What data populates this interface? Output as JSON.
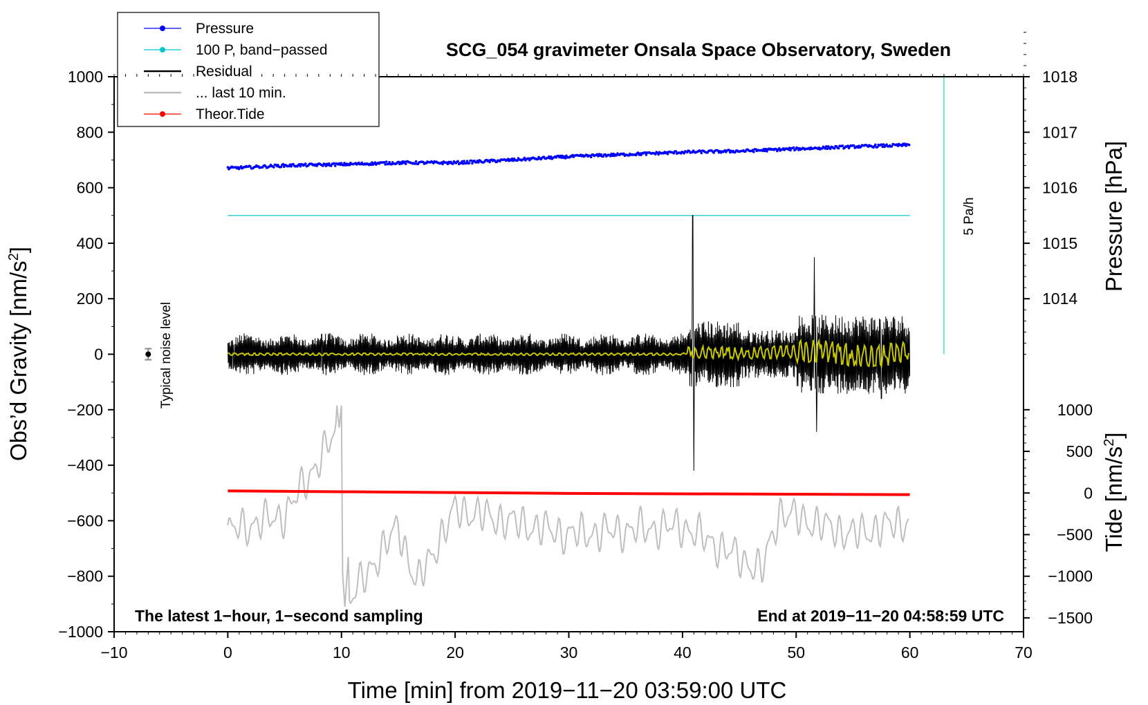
{
  "chart_data": {
    "type": "line",
    "title": "SCG_054 gravimeter Onsala Space Observatory, Sweden",
    "xlabel": "Time [min] from 2019−11−20 03:59:00 UTC",
    "ylabel_left": "Obs’d Gravity [nm/s",
    "ylabel_right_top": "Pressure [hPa]",
    "ylabel_right_bottom": "Tide [nm/s",
    "ylabel_sup": "2",
    "ylabel_close": "]",
    "xlim": [
      -10,
      70
    ],
    "ylim": [
      -1000,
      1000
    ],
    "x_ticks": [
      -10,
      0,
      10,
      20,
      30,
      40,
      50,
      60,
      70
    ],
    "x_tick_labels": [
      "−10",
      "0",
      "10",
      "20",
      "30",
      "40",
      "50",
      "60",
      "70"
    ],
    "y_ticks": [
      -1000,
      -800,
      -600,
      -400,
      -200,
      0,
      200,
      400,
      600,
      800,
      1000
    ],
    "y_tick_labels": [
      "−1000",
      "−800",
      "−600",
      "−400",
      "−200",
      "0",
      "200",
      "400",
      "600",
      "800",
      "1000"
    ],
    "pressure_axis": {
      "ticks": [
        1014,
        1015,
        1016,
        1017,
        1018
      ],
      "tick_labels": [
        "1014",
        "1015",
        "1016",
        "1017",
        "1018"
      ],
      "unit_gravity_per_hPa": 200,
      "hPa_at_gravity_zero": 1013
    },
    "tide_axis": {
      "ticks": [
        -1500,
        -1000,
        -500,
        0,
        500,
        1000
      ],
      "tick_labels": [
        "−1500",
        "−1000",
        "−500",
        "0",
        "500",
        "1000"
      ],
      "gravity_per_tide": 0.3,
      "gravity_at_tide_zero": -500
    },
    "legend": {
      "position": "top-left",
      "entries": [
        {
          "label": "Pressure",
          "color": "#0000ff",
          "marker": true
        },
        {
          "label": "100 P, band−passed",
          "color": "#00c8c8",
          "marker": true
        },
        {
          "label": "Residual",
          "color": "#000000",
          "marker": false
        },
        {
          "label": "... last 10 min.",
          "color": "#bebebe",
          "marker": false
        },
        {
          "label": "Theor.Tide",
          "color": "#ff0000",
          "marker": true
        }
      ]
    },
    "series": [
      {
        "name": "Pressure",
        "color": "#0000ff",
        "unit": "hPa",
        "x": [
          0,
          5,
          10,
          15,
          20,
          25,
          30,
          35,
          40,
          45,
          50,
          55,
          60
        ],
        "y": [
          1016.35,
          1016.4,
          1016.42,
          1016.45,
          1016.45,
          1016.5,
          1016.56,
          1016.6,
          1016.64,
          1016.66,
          1016.7,
          1016.74,
          1016.77
        ]
      },
      {
        "name": "100 P, band-passed",
        "color": "#00c8c8",
        "unit": "nm/s2",
        "x": [
          0,
          60
        ],
        "y": [
          500,
          500
        ]
      },
      {
        "name": "Residual",
        "color": "#000000",
        "unit": "nm/s2",
        "x": [
          0,
          5,
          10,
          15,
          20,
          25,
          30,
          35,
          40,
          40.9,
          41,
          41.2,
          45,
          50,
          51.6,
          51.8,
          55,
          57.5,
          60
        ],
        "y": [
          0,
          60,
          -70,
          70,
          -60,
          60,
          -70,
          60,
          50,
          500,
          -420,
          120,
          90,
          120,
          350,
          -280,
          110,
          -160,
          60
        ]
      },
      {
        "name": "Residual (smoothed)",
        "color": "#c8c800",
        "unit": "nm/s2",
        "x": [
          0,
          40,
          41,
          45,
          52,
          56,
          60
        ],
        "y": [
          0,
          0,
          30,
          10,
          40,
          -30,
          20
        ]
      },
      {
        "name": "... last 10 min.",
        "color": "#bebebe",
        "unit": "nm/s2",
        "x": [
          0,
          5,
          9.8,
          10.3,
          15,
          16.6,
          20,
          30,
          40,
          47,
          48.5,
          55,
          60
        ],
        "y": [
          -640,
          -580,
          -265,
          -910,
          -620,
          -830,
          -560,
          -650,
          -620,
          -780,
          -570,
          -650,
          -600
        ]
      },
      {
        "name": "Theor.Tide",
        "color": "#ff0000",
        "unit": "nm/s2 (tide axis)",
        "x": [
          0,
          10,
          20,
          30,
          40,
          50,
          60
        ],
        "y": [
          25,
          15,
          5,
          -5,
          -10,
          -15,
          -20
        ]
      }
    ],
    "noise_marker": {
      "x": -7,
      "y": 0,
      "error": 20,
      "label": "Typical noise level"
    },
    "cyan_bar": {
      "x": 63,
      "y_from": 0,
      "y_to": 1000,
      "label": "5 Pa/h"
    },
    "footer_left": "The latest 1−hour, 1−second sampling",
    "footer_right": "End at 2019−11−20 04:58:59 UTC"
  }
}
